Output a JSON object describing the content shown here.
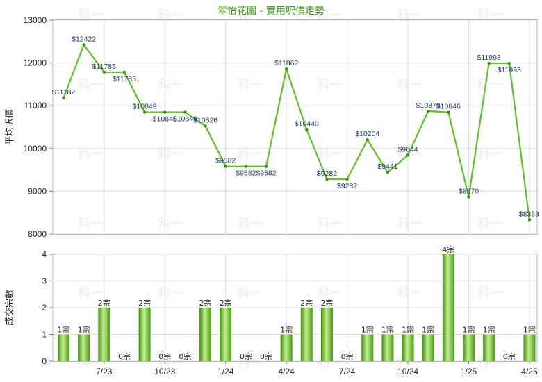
{
  "chart_data": [
    {
      "type": "line",
      "title": "翠怡花園 - 實用呎價走勢",
      "ylabel": "平均呎價",
      "ylim": [
        8000,
        13000
      ],
      "yticks": [
        "8000",
        "9000",
        "10000",
        "11000",
        "12000",
        "13000"
      ],
      "grid": true,
      "series": [
        {
          "values": [
            11182,
            12422,
            11785,
            11785,
            10849,
            10849,
            10849,
            10526,
            9582,
            9582,
            9582,
            11862,
            10440,
            9282,
            9282,
            10204,
            9441,
            9844,
            10875,
            10846,
            8870,
            11993,
            11993,
            8333
          ],
          "labels": [
            "$11182",
            "$12422",
            "$11785",
            "$11785",
            "$10849",
            "$10849",
            "$10849",
            "$10526",
            "$9582",
            "$9582",
            "$9582",
            "$11862",
            "$10440",
            "$9282",
            "$9282",
            "$10204",
            "$9441",
            "$9844",
            "$10875",
            "$10846",
            "$8870",
            "$11993",
            "$11993",
            "$8333"
          ],
          "carried": [
            false,
            false,
            false,
            true,
            false,
            true,
            true,
            false,
            false,
            true,
            true,
            false,
            false,
            false,
            true,
            false,
            false,
            false,
            false,
            false,
            false,
            false,
            true,
            false
          ]
        }
      ],
      "colors": {
        "line": "#5dc41d",
        "carried": "#5dc41d"
      }
    },
    {
      "type": "bar",
      "ylabel": "成交宗數",
      "ylim": [
        0,
        4
      ],
      "yticks": [
        "0",
        "1",
        "2",
        "3",
        "4"
      ],
      "xtick_labels": [
        "7/23",
        "10/23",
        "1/24",
        "4/24",
        "7/24",
        "10/24",
        "1/25",
        "4/25"
      ],
      "values": [
        1,
        1,
        2,
        0,
        2,
        0,
        0,
        2,
        2,
        0,
        0,
        1,
        2,
        2,
        0,
        1,
        1,
        1,
        1,
        4,
        1,
        1,
        0,
        1
      ],
      "labels": [
        "1宗",
        "1宗",
        "2宗",
        "0宗",
        "2宗",
        "0宗",
        "0宗",
        "2宗",
        "2宗",
        "0宗",
        "0宗",
        "1宗",
        "2宗",
        "2宗",
        "0宗",
        "1宗",
        "1宗",
        "1宗",
        "1宗",
        "4宗",
        "1宗",
        "1宗",
        "0宗",
        "1宗"
      ],
      "grid": true,
      "colors": {
        "bar": "#6cc424",
        "bar_dark": "#3f8d12",
        "bar_light": "#c3ef8e"
      }
    }
  ],
  "watermark": "科一"
}
